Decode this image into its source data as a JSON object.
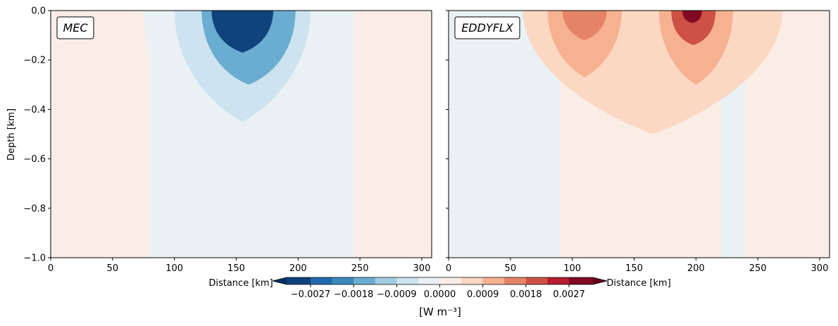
{
  "chart_data": [
    {
      "type": "heatmap",
      "subtype": "filled-contour",
      "title": "MEC",
      "xlabel": "Distance [km]",
      "ylabel": "Depth [km]",
      "xlim": [
        0,
        308
      ],
      "ylim": [
        -1.0,
        0.0
      ],
      "xticks": [
        0,
        50,
        100,
        150,
        200,
        250,
        300
      ],
      "yticks": [
        0.0,
        -0.2,
        -0.4,
        -0.6,
        -0.8,
        -1.0
      ],
      "ytick_labels": [
        "0.0",
        "−0.2",
        "−0.4",
        "−0.6",
        "−0.8",
        "−1.0"
      ],
      "background_value": -0.0001,
      "features": [
        {
          "type": "tongue",
          "x": 150,
          "depth_center": 0.0,
          "half_width_top": 75,
          "half_width_bottom": 30,
          "depth_extent": 0.65,
          "value": -0.00045
        },
        {
          "type": "tongue",
          "x": 155,
          "depth_center": 0.0,
          "half_width_top": 55,
          "half_width_bottom": 25,
          "depth_extent": 0.45,
          "value": -0.0009
        },
        {
          "type": "tongue",
          "x": 160,
          "depth_center": 0.0,
          "half_width_top": 38,
          "half_width_bottom": 22,
          "depth_extent": 0.3,
          "value": -0.0018
        },
        {
          "type": "tongue",
          "x": 155,
          "depth_center": 0.0,
          "half_width_top": 25,
          "half_width_bottom": 15,
          "depth_extent": 0.17,
          "value": -0.0032
        },
        {
          "type": "band",
          "x_from": 0,
          "x_to": 80,
          "value": 5e-05
        },
        {
          "type": "band",
          "x_from": 245,
          "x_to": 308,
          "value": 5e-05
        }
      ]
    },
    {
      "type": "heatmap",
      "subtype": "filled-contour",
      "title": "EDDYFLX",
      "xlabel": "Distance [km]",
      "ylabel": "",
      "xlim": [
        0,
        308
      ],
      "ylim": [
        -1.0,
        0.0
      ],
      "xticks": [
        0,
        50,
        100,
        150,
        200,
        250,
        300
      ],
      "yticks": [
        0.0,
        -0.2,
        -0.4,
        -0.6,
        -0.8,
        -1.0
      ],
      "ytick_labels": [
        "",
        "",
        "",
        "",
        "",
        ""
      ],
      "background_value": 5e-05,
      "features": [
        {
          "type": "tongue",
          "x": 165,
          "depth_center": 0.0,
          "half_width_top": 105,
          "half_width_bottom": 40,
          "depth_extent": 0.5,
          "value": 0.00045
        },
        {
          "type": "tongue",
          "x": 110,
          "depth_center": 0.0,
          "half_width_top": 30,
          "half_width_bottom": 15,
          "depth_extent": 0.27,
          "value": 0.0009
        },
        {
          "type": "tongue",
          "x": 200,
          "depth_center": 0.0,
          "half_width_top": 30,
          "half_width_bottom": 15,
          "depth_extent": 0.3,
          "value": 0.0009
        },
        {
          "type": "tongue",
          "x": 110,
          "depth_center": 0.0,
          "half_width_top": 18,
          "half_width_bottom": 10,
          "depth_extent": 0.12,
          "value": 0.0016
        },
        {
          "type": "tongue",
          "x": 198,
          "depth_center": 0.0,
          "half_width_top": 18,
          "half_width_bottom": 12,
          "depth_extent": 0.14,
          "value": 0.0021
        },
        {
          "type": "tongue",
          "x": 197,
          "depth_center": 0.0,
          "half_width_top": 8,
          "half_width_bottom": 6,
          "depth_extent": 0.05,
          "value": 0.0031
        },
        {
          "type": "band",
          "x_from": 0,
          "x_to": 90,
          "value": -5e-05
        },
        {
          "type": "band",
          "x_from": 220,
          "x_to": 240,
          "value": -5e-05
        }
      ]
    }
  ],
  "colorbar": {
    "label": "[W m⁻³]",
    "vmin": -0.0032,
    "vmax": 0.0032,
    "extend": "both",
    "levels": [
      -0.0032,
      -0.0027,
      -0.00225,
      -0.0018,
      -0.00135,
      -0.0009,
      -0.00045,
      0.0,
      0.00045,
      0.0009,
      0.00135,
      0.0018,
      0.00225,
      0.0027,
      0.0032
    ],
    "ticks": [
      -0.0027,
      -0.0018,
      -0.0009,
      0.0,
      0.0009,
      0.0018,
      0.0027
    ],
    "tick_labels": [
      "−0.0027",
      "−0.0018",
      "−0.0009",
      "0.0000",
      "0.0009",
      "0.0018",
      "0.0027"
    ],
    "colors": [
      "#053061",
      "#2166ac",
      "#4393c3",
      "#92c5de",
      "#d1e5f0",
      "#f7f7f7",
      "#fddbc7",
      "#f4a582",
      "#d6604d",
      "#b2182b",
      "#67001f"
    ]
  }
}
